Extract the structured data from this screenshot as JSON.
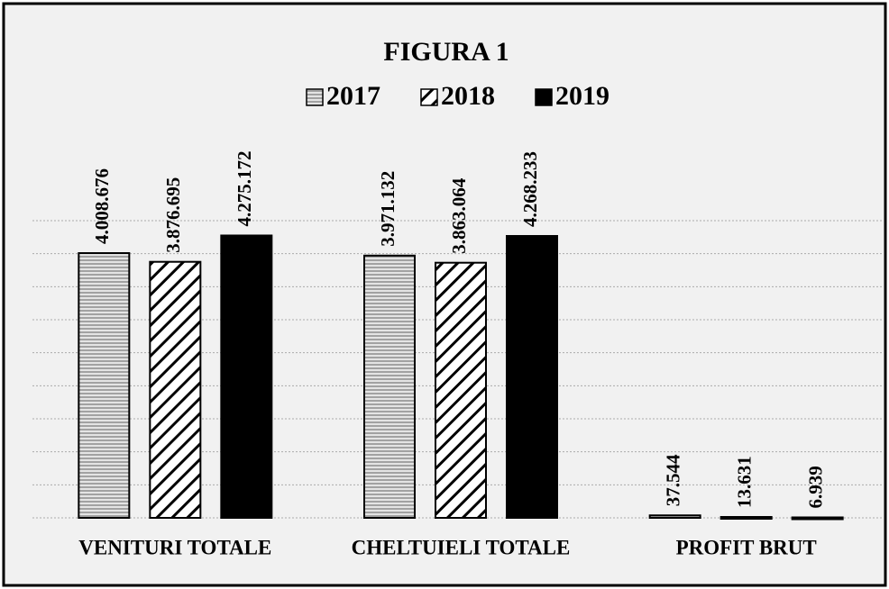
{
  "chart_data": {
    "type": "bar",
    "title": "FIGURA 1",
    "categories": [
      "VENITURI TOTALE",
      "CHELTUIELI TOTALE",
      "PROFIT BRUT"
    ],
    "series": [
      {
        "name": "2017",
        "color": "#bdbdbd",
        "pattern": "horizontal",
        "values": [
          4008676,
          3971132,
          37544
        ],
        "value_labels": [
          "4.008.676",
          "3.971.132",
          "37.544"
        ]
      },
      {
        "name": "2018",
        "color": "#ffffff",
        "pattern": "diagonal",
        "values": [
          3876695,
          3863064,
          13631
        ],
        "value_labels": [
          "3.876.695",
          "3.863.064",
          "13.631"
        ]
      },
      {
        "name": "2019",
        "color": "#000000",
        "pattern": "solid",
        "values": [
          4275172,
          4268233,
          6939
        ],
        "value_labels": [
          "4.275.172",
          "4.268.233",
          "6.939"
        ]
      }
    ],
    "ylim": [
      0,
      4500000
    ],
    "yticks": [
      0,
      500000,
      1000000,
      1500000,
      2000000,
      2500000,
      3000000,
      3500000,
      4000000,
      4500000
    ],
    "grid": true,
    "legend": "top"
  }
}
